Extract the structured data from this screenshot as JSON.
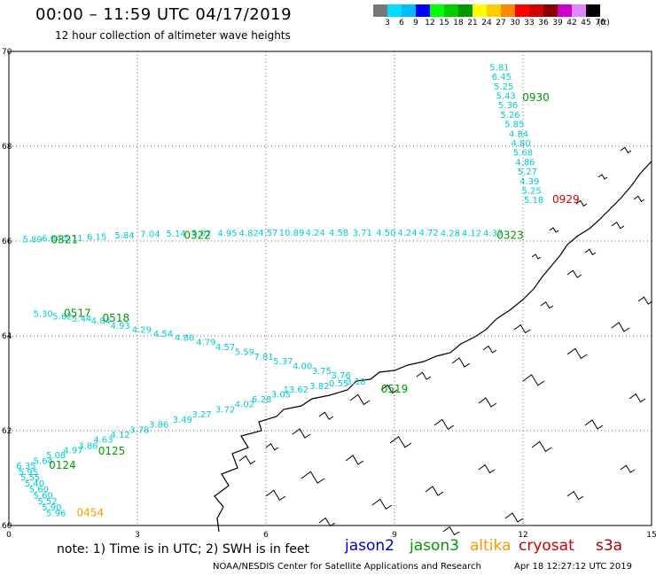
{
  "header": {
    "title": "00:00 – 11:59 UTC 04/17/2019",
    "subtitle": "12 hour collection of altimeter wave heights"
  },
  "colorbar": {
    "unit_label": "(ft)",
    "bins": [
      {
        "label": "3",
        "color": "#777777"
      },
      {
        "label": "6",
        "color": "#00ddff"
      },
      {
        "label": "9",
        "color": "#00bbff"
      },
      {
        "label": "12",
        "color": "#0000ff"
      },
      {
        "label": "15",
        "color": "#00ff00"
      },
      {
        "label": "18",
        "color": "#00cc00"
      },
      {
        "label": "21",
        "color": "#009900"
      },
      {
        "label": "24",
        "color": "#ffff00"
      },
      {
        "label": "27",
        "color": "#ffcc00"
      },
      {
        "label": "30",
        "color": "#ff8800"
      },
      {
        "label": "33",
        "color": "#ff0000"
      },
      {
        "label": "36",
        "color": "#cc0000"
      },
      {
        "label": "39",
        "color": "#880000"
      },
      {
        "label": "42",
        "color": "#cc00cc"
      },
      {
        "label": "45",
        "color": "#dd88ff"
      },
      {
        "label": "70",
        "color": "#000000"
      }
    ]
  },
  "axes": {
    "x_ticks": [
      "0",
      "3",
      "6",
      "9",
      "12",
      "15"
    ],
    "y_ticks": [
      "70",
      "68",
      "66",
      "64",
      "62",
      "60"
    ],
    "lon_range": [
      0,
      15
    ],
    "lat_range": [
      60,
      70
    ]
  },
  "tracks": [
    {
      "satellite": "jason3",
      "time_labels": [
        {
          "text": "0930",
          "lon": 12.3,
          "lat": 68.95
        }
      ],
      "points": [
        {
          "lon": 11.45,
          "lat": 69.6,
          "v": "5.81"
        },
        {
          "lon": 11.5,
          "lat": 69.4,
          "v": "6.45"
        },
        {
          "lon": 11.55,
          "lat": 69.2,
          "v": "5.25"
        },
        {
          "lon": 11.6,
          "lat": 69.0,
          "v": "5.43"
        },
        {
          "lon": 11.65,
          "lat": 68.8,
          "v": "5.36"
        },
        {
          "lon": 11.7,
          "lat": 68.6,
          "v": "5.26"
        },
        {
          "lon": 11.8,
          "lat": 68.4,
          "v": "5.85"
        },
        {
          "lon": 11.9,
          "lat": 68.2,
          "v": "4.84"
        },
        {
          "lon": 11.95,
          "lat": 68.0,
          "v": "4.80"
        },
        {
          "lon": 12.0,
          "lat": 67.8,
          "v": "5.68"
        },
        {
          "lon": 12.05,
          "lat": 67.6,
          "v": "4.86"
        },
        {
          "lon": 12.1,
          "lat": 67.4,
          "v": "5.27"
        },
        {
          "lon": 12.15,
          "lat": 67.2,
          "v": "4.39"
        },
        {
          "lon": 12.2,
          "lat": 67.0,
          "v": "5.25"
        },
        {
          "lon": 12.25,
          "lat": 66.8,
          "v": "5.18"
        }
      ]
    },
    {
      "satellite": "cryosat",
      "time_labels": [
        {
          "text": "0929",
          "lon": 13.0,
          "lat": 66.8
        }
      ],
      "points": []
    },
    {
      "satellite": "jason3",
      "time_labels": [
        {
          "text": "0321",
          "lon": 1.3,
          "lat": 65.95
        },
        {
          "text": "0322",
          "lon": 4.4,
          "lat": 66.05
        },
        {
          "text": "0323",
          "lon": 11.7,
          "lat": 66.05
        }
      ],
      "points": [
        {
          "lon": 0.55,
          "lat": 65.97,
          "v": "5.89"
        },
        {
          "lon": 1.0,
          "lat": 65.99,
          "v": "6.04"
        },
        {
          "lon": 1.5,
          "lat": 66.0,
          "v": "5.11"
        },
        {
          "lon": 2.05,
          "lat": 66.03,
          "v": "6.15"
        },
        {
          "lon": 2.7,
          "lat": 66.06,
          "v": "5.84"
        },
        {
          "lon": 3.3,
          "lat": 66.08,
          "v": "7.04"
        },
        {
          "lon": 3.9,
          "lat": 66.09,
          "v": "5.14"
        },
        {
          "lon": 4.5,
          "lat": 66.1,
          "v": "5.02"
        },
        {
          "lon": 5.1,
          "lat": 66.1,
          "v": "4.95"
        },
        {
          "lon": 5.6,
          "lat": 66.1,
          "v": "4.82"
        },
        {
          "lon": 6.05,
          "lat": 66.11,
          "v": "4.57"
        },
        {
          "lon": 6.6,
          "lat": 66.11,
          "v": "10.89"
        },
        {
          "lon": 7.15,
          "lat": 66.11,
          "v": "4.24"
        },
        {
          "lon": 7.7,
          "lat": 66.11,
          "v": "4.58"
        },
        {
          "lon": 8.25,
          "lat": 66.11,
          "v": "3.71"
        },
        {
          "lon": 8.8,
          "lat": 66.11,
          "v": "4.50"
        },
        {
          "lon": 9.3,
          "lat": 66.11,
          "v": "4.24"
        },
        {
          "lon": 9.8,
          "lat": 66.11,
          "v": "4.72"
        },
        {
          "lon": 10.3,
          "lat": 66.1,
          "v": "4.28"
        },
        {
          "lon": 10.8,
          "lat": 66.1,
          "v": "4.12"
        },
        {
          "lon": 11.3,
          "lat": 66.1,
          "v": "4.37"
        }
      ]
    },
    {
      "satellite": "jason3",
      "time_labels": [
        {
          "text": "0517",
          "lon": 1.6,
          "lat": 64.4
        },
        {
          "text": "0518",
          "lon": 2.5,
          "lat": 64.3
        },
        {
          "text": "0519",
          "lon": 9.0,
          "lat": 62.8
        }
      ],
      "points": [
        {
          "lon": 0.8,
          "lat": 64.4,
          "v": "5.30"
        },
        {
          "lon": 1.25,
          "lat": 64.35,
          "v": "5.62"
        },
        {
          "lon": 1.7,
          "lat": 64.3,
          "v": "5.44"
        },
        {
          "lon": 2.15,
          "lat": 64.25,
          "v": "4.84"
        },
        {
          "lon": 2.6,
          "lat": 64.15,
          "v": "4.93"
        },
        {
          "lon": 3.1,
          "lat": 64.07,
          "v": "4.29"
        },
        {
          "lon": 3.6,
          "lat": 63.98,
          "v": "4.54"
        },
        {
          "lon": 4.1,
          "lat": 63.9,
          "v": "4.86"
        },
        {
          "lon": 4.6,
          "lat": 63.8,
          "v": "4.79"
        },
        {
          "lon": 5.05,
          "lat": 63.7,
          "v": "4.57"
        },
        {
          "lon": 5.5,
          "lat": 63.6,
          "v": "5.59"
        },
        {
          "lon": 5.95,
          "lat": 63.5,
          "v": "7.81"
        },
        {
          "lon": 6.4,
          "lat": 63.4,
          "v": "5.37"
        },
        {
          "lon": 6.85,
          "lat": 63.3,
          "v": "4.00"
        },
        {
          "lon": 7.3,
          "lat": 63.2,
          "v": "3.75"
        },
        {
          "lon": 7.75,
          "lat": 63.1,
          "v": "3.76"
        }
      ]
    },
    {
      "satellite": "jason3",
      "time_labels": [
        {
          "text": "0124",
          "lon": 1.25,
          "lat": 61.2
        },
        {
          "text": "0125",
          "lon": 2.4,
          "lat": 61.5
        }
      ],
      "points": [
        {
          "lon": 0.4,
          "lat": 61.2,
          "v": "6.35"
        },
        {
          "lon": 0.45,
          "lat": 61.07,
          "v": "5.95"
        },
        {
          "lon": 0.5,
          "lat": 60.95,
          "v": "5.55"
        },
        {
          "lon": 0.6,
          "lat": 60.82,
          "v": "5.40"
        },
        {
          "lon": 0.7,
          "lat": 60.7,
          "v": "5.60"
        },
        {
          "lon": 0.8,
          "lat": 60.57,
          "v": "5.60"
        },
        {
          "lon": 0.9,
          "lat": 60.45,
          "v": "5.52"
        },
        {
          "lon": 1.0,
          "lat": 60.32,
          "v": "5.90"
        },
        {
          "lon": 1.1,
          "lat": 60.2,
          "v": "5.96"
        },
        {
          "lon": 0.8,
          "lat": 61.3,
          "v": "5.64"
        },
        {
          "lon": 1.1,
          "lat": 61.42,
          "v": "5.08"
        },
        {
          "lon": 1.5,
          "lat": 61.52,
          "v": "4.97"
        },
        {
          "lon": 1.85,
          "lat": 61.62,
          "v": "3.86"
        },
        {
          "lon": 2.2,
          "lat": 61.75,
          "v": "4.63"
        },
        {
          "lon": 2.6,
          "lat": 61.85,
          "v": "4.12"
        },
        {
          "lon": 3.05,
          "lat": 61.95,
          "v": "3.78"
        },
        {
          "lon": 3.5,
          "lat": 62.07,
          "v": "3.86"
        },
        {
          "lon": 4.05,
          "lat": 62.17,
          "v": "3.49"
        },
        {
          "lon": 4.5,
          "lat": 62.28,
          "v": "3.27"
        },
        {
          "lon": 5.05,
          "lat": 62.38,
          "v": "3.72"
        },
        {
          "lon": 5.5,
          "lat": 62.5,
          "v": "4.02"
        },
        {
          "lon": 5.9,
          "lat": 62.6,
          "v": "6.28"
        },
        {
          "lon": 6.35,
          "lat": 62.7,
          "v": "3.05"
        },
        {
          "lon": 6.7,
          "lat": 62.8,
          "v": "13.62"
        },
        {
          "lon": 7.25,
          "lat": 62.88,
          "v": "3.82"
        },
        {
          "lon": 7.7,
          "lat": 62.93,
          "v": "0.55"
        },
        {
          "lon": 8.1,
          "lat": 62.97,
          "v": "3.18"
        }
      ]
    },
    {
      "satellite": "altika",
      "time_labels": [
        {
          "text": "0454",
          "lon": 1.9,
          "lat": 60.2
        }
      ],
      "points": []
    }
  ],
  "footer": {
    "note": "note:  1) Time is in UTC;  2) SWH is in feet",
    "legend": [
      {
        "name": "jason2",
        "color": "#0000cc"
      },
      {
        "name": "jason3",
        "color": "#009900"
      },
      {
        "name": "altika",
        "color": "#ff9900"
      },
      {
        "name": "cryosat",
        "color": "#cc0000"
      },
      {
        "name": "s3a",
        "color": "#aa0000"
      }
    ],
    "credit": "NOAA/NESDIS Center for Satellite Applications and Research",
    "timestamp": "Apr 18 12:27:12 UTC 2019"
  },
  "colors": {
    "value_text": "#00cccc",
    "jason3": "#009900",
    "cryosat": "#cc0000",
    "altika": "#ff9900",
    "land_outline": "#000000"
  }
}
